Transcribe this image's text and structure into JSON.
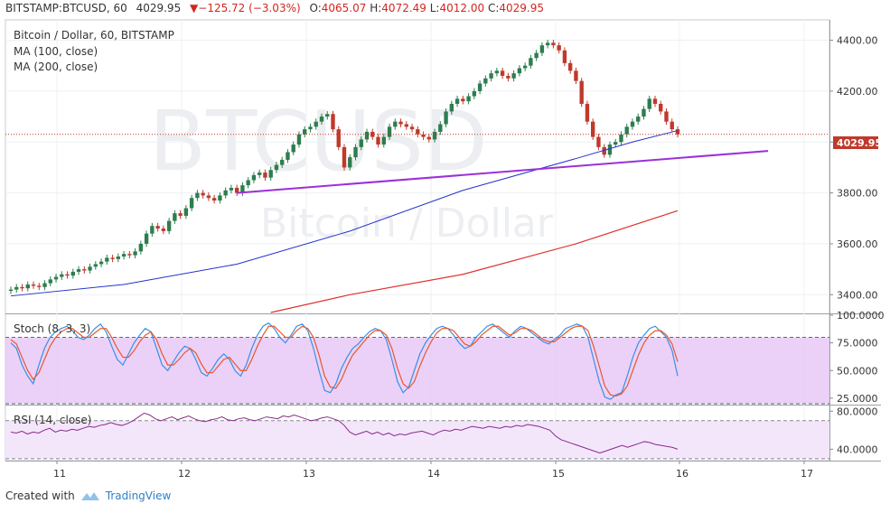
{
  "header": {
    "symbol": "BITSTAMP:BTCUSD, 60",
    "last": "4029.95",
    "change": "▼−125.72 (−3.03%)",
    "open_label": "O:",
    "open": "4065.07",
    "high_label": "H:",
    "high": "4072.49",
    "low_label": "L:",
    "low": "4012.00",
    "close_label": "C:",
    "close": "4029.95"
  },
  "legend": {
    "title": "Bitcoin / Dollar, 60, BITSTAMP",
    "ma100": "MA (100, close)",
    "ma200": "MA (200, close)"
  },
  "watermark": {
    "symbol": "BTCUSD",
    "name": "Bitcoin / Dollar"
  },
  "price_tag": "4029.95",
  "stoch_label": "Stoch (8, 3, 3)",
  "rsi_label": "RSI (14, close)",
  "footer": {
    "created": "Created with",
    "brand": "TradingView"
  },
  "colors": {
    "up": "#2d7d4f",
    "down": "#c0392b",
    "ma100": "#2233cc",
    "ma200": "#e0302a",
    "trend": "#9b30d9",
    "stoch_k": "#3a8fe6",
    "stoch_d": "#e8572c",
    "rsi": "#8a2a8a",
    "band": "#e6c6f6"
  },
  "chart_data": [
    {
      "type": "candlestick",
      "title": "Bitcoin / Dollar, 60, BITSTAMP",
      "x_ticks": [
        "11",
        "12",
        "13",
        "14",
        "15",
        "16",
        "17"
      ],
      "y_ticks": [
        "3400.00",
        "3600.00",
        "3800.00",
        "4000.00",
        "4200.00",
        "4400.00"
      ],
      "ylim": [
        3330,
        4480
      ],
      "last_price": 4029.95,
      "closes": [
        3420,
        3430,
        3425,
        3440,
        3435,
        3430,
        3445,
        3460,
        3470,
        3480,
        3475,
        3490,
        3500,
        3495,
        3510,
        3520,
        3530,
        3545,
        3540,
        3550,
        3560,
        3555,
        3570,
        3600,
        3640,
        3670,
        3660,
        3650,
        3690,
        3720,
        3710,
        3740,
        3780,
        3800,
        3790,
        3780,
        3770,
        3790,
        3810,
        3820,
        3800,
        3830,
        3850,
        3870,
        3880,
        3860,
        3890,
        3910,
        3930,
        3960,
        3990,
        4030,
        4050,
        4060,
        4080,
        4100,
        4110,
        4050,
        3980,
        3900,
        3940,
        3980,
        4010,
        4040,
        4020,
        3990,
        4020,
        4060,
        4080,
        4070,
        4060,
        4050,
        4030,
        4020,
        4010,
        4040,
        4070,
        4120,
        4150,
        4170,
        4160,
        4180,
        4200,
        4230,
        4250,
        4270,
        4280,
        4260,
        4250,
        4270,
        4290,
        4300,
        4330,
        4350,
        4380,
        4390,
        4380,
        4360,
        4310,
        4280,
        4240,
        4150,
        4080,
        4020,
        3980,
        3950,
        3990,
        4000,
        4030,
        4060,
        4080,
        4100,
        4130,
        4170,
        4150,
        4120,
        4080,
        4050,
        4030
      ],
      "ma100": [
        {
          "x": 0,
          "y": 3395
        },
        {
          "x": 20,
          "y": 3440
        },
        {
          "x": 40,
          "y": 3520
        },
        {
          "x": 60,
          "y": 3650
        },
        {
          "x": 80,
          "y": 3810
        },
        {
          "x": 100,
          "y": 3935
        },
        {
          "x": 110,
          "y": 4000
        },
        {
          "x": 118,
          "y": 4045
        }
      ],
      "ma200": [
        {
          "x": 46,
          "y": 3330
        },
        {
          "x": 60,
          "y": 3400
        },
        {
          "x": 80,
          "y": 3480
        },
        {
          "x": 100,
          "y": 3600
        },
        {
          "x": 118,
          "y": 3730
        }
      ],
      "trendline": [
        {
          "x": 40,
          "y": 3800
        },
        {
          "x": 134,
          "y": 3965
        }
      ]
    },
    {
      "type": "line",
      "title": "Stoch (8, 3, 3)",
      "y_ticks": [
        "25.0000",
        "50.0000",
        "75.0000",
        "100.0000"
      ],
      "ylim": [
        20,
        100
      ],
      "bands": [
        20,
        80
      ],
      "series": [
        {
          "values": [
            75,
            70,
            55,
            45,
            38,
            55,
            70,
            80,
            85,
            88,
            90,
            86,
            80,
            78,
            82,
            88,
            92,
            85,
            72,
            60,
            55,
            65,
            75,
            82,
            88,
            85,
            70,
            55,
            50,
            58,
            66,
            72,
            70,
            60,
            48,
            45,
            52,
            60,
            65,
            60,
            50,
            45,
            55,
            70,
            82,
            90,
            93,
            88,
            80,
            75,
            82,
            90,
            92,
            86,
            70,
            50,
            32,
            30,
            38,
            52,
            62,
            70,
            74,
            80,
            85,
            88,
            86,
            78,
            60,
            40,
            30,
            35,
            50,
            65,
            75,
            82,
            88,
            90,
            88,
            82,
            75,
            70,
            72,
            80,
            85,
            90,
            92,
            88,
            84,
            80,
            86,
            90,
            88,
            84,
            80,
            76,
            74,
            78,
            82,
            88,
            90,
            92,
            90,
            80,
            60,
            40,
            26,
            24,
            28,
            30,
            45,
            62,
            75,
            82,
            88,
            90,
            85,
            80,
            68,
            45
          ]
        },
        {
          "values": [
            78,
            74,
            62,
            50,
            42,
            48,
            60,
            72,
            80,
            85,
            88,
            88,
            84,
            80,
            80,
            84,
            88,
            88,
            80,
            70,
            62,
            62,
            68,
            76,
            82,
            85,
            78,
            65,
            55,
            55,
            60,
            66,
            70,
            66,
            56,
            48,
            48,
            54,
            60,
            62,
            56,
            50,
            50,
            60,
            72,
            82,
            90,
            90,
            85,
            80,
            80,
            86,
            90,
            88,
            80,
            64,
            45,
            35,
            34,
            42,
            54,
            64,
            70,
            76,
            82,
            86,
            86,
            82,
            70,
            52,
            38,
            34,
            40,
            54,
            66,
            76,
            84,
            88,
            88,
            86,
            80,
            74,
            72,
            76,
            82,
            86,
            90,
            90,
            86,
            82,
            84,
            88,
            88,
            86,
            82,
            78,
            76,
            76,
            80,
            84,
            88,
            90,
            90,
            86,
            72,
            54,
            36,
            28,
            27,
            29,
            36,
            50,
            64,
            75,
            82,
            86,
            86,
            82,
            74,
            58
          ]
        }
      ]
    },
    {
      "type": "line",
      "title": "RSI (14, close)",
      "y_ticks": [
        "40.0000",
        "80.0000"
      ],
      "ylim": [
        28,
        85
      ],
      "bands": [
        30,
        70
      ],
      "series": [
        {
          "values": [
            58,
            57,
            59,
            56,
            58,
            57,
            60,
            62,
            58,
            60,
            59,
            61,
            60,
            62,
            64,
            63,
            65,
            66,
            68,
            66,
            65,
            67,
            70,
            74,
            78,
            76,
            72,
            70,
            72,
            74,
            71,
            73,
            75,
            72,
            70,
            69,
            71,
            72,
            74,
            71,
            70,
            72,
            73,
            71,
            70,
            72,
            74,
            73,
            72,
            75,
            74,
            76,
            74,
            72,
            70,
            71,
            73,
            74,
            72,
            70,
            65,
            58,
            55,
            57,
            59,
            56,
            58,
            55,
            57,
            54,
            56,
            55,
            57,
            58,
            59,
            57,
            55,
            58,
            60,
            59,
            61,
            60,
            62,
            64,
            63,
            62,
            64,
            63,
            62,
            64,
            63,
            65,
            64,
            66,
            65,
            64,
            62,
            60,
            54,
            50,
            48,
            46,
            44,
            42,
            40,
            38,
            36,
            38,
            40,
            42,
            44,
            42,
            44,
            46,
            48,
            47,
            45,
            44,
            43,
            42,
            40
          ]
        }
      ]
    }
  ]
}
